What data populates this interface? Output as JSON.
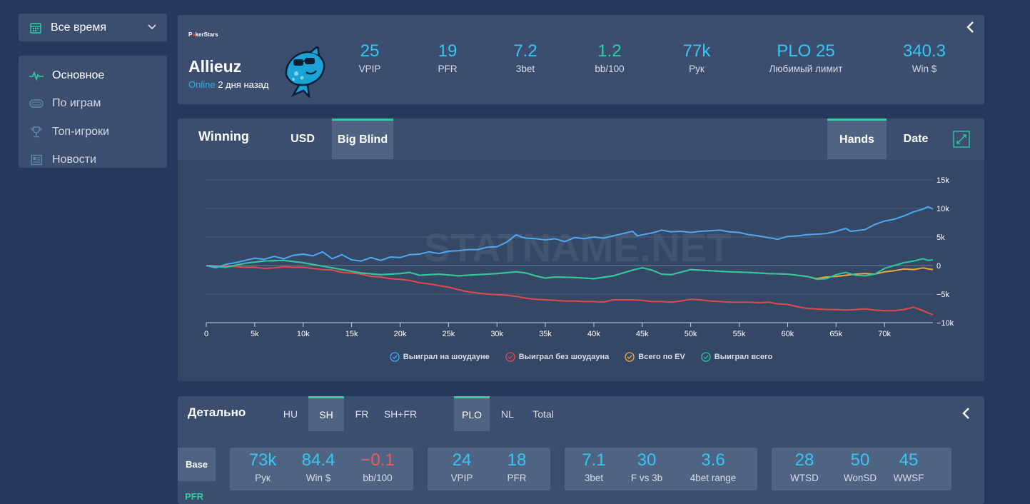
{
  "period_select": {
    "label": "Все время"
  },
  "nav": {
    "items": [
      {
        "label": "Основное"
      },
      {
        "label": "По играм"
      },
      {
        "label": "Топ-игроки"
      },
      {
        "label": "Новости"
      }
    ]
  },
  "player": {
    "room_logo": "PokerStars",
    "name": "Allieuz",
    "online_label": "Online",
    "online_ago": "2 дня назад",
    "stats": [
      {
        "value": "25",
        "label": "VPIP"
      },
      {
        "value": "19",
        "label": "PFR"
      },
      {
        "value": "7.2",
        "label": "3bet"
      },
      {
        "value": "1.2",
        "label": "bb/100"
      },
      {
        "value": "77k",
        "label": "Рук"
      },
      {
        "value": "PLO 25",
        "label": "Любимый лимит"
      },
      {
        "value": "340.3",
        "label": "Win $"
      }
    ]
  },
  "chart_panel": {
    "title": "Winning",
    "unit_tabs": [
      "USD",
      "Big Blind"
    ],
    "active_unit": "Big Blind",
    "axis_tabs": [
      "Hands",
      "Date"
    ],
    "active_axis": "Hands",
    "watermark": "STATNAME.NET"
  },
  "chart_data": {
    "type": "line",
    "title": "Winning",
    "xlabel": "Hands",
    "ylabel": "Big Blind",
    "xlim": [
      0,
      75000
    ],
    "ylim": [
      -10000,
      15000
    ],
    "x_ticks": [
      0,
      5000,
      10000,
      15000,
      20000,
      25000,
      30000,
      35000,
      40000,
      45000,
      50000,
      55000,
      60000,
      65000,
      70000
    ],
    "x_tick_labels": [
      "0",
      "5k",
      "10k",
      "15k",
      "20k",
      "25k",
      "30k",
      "35k",
      "40k",
      "45k",
      "50k",
      "55k",
      "60k",
      "65k",
      "70k"
    ],
    "y_ticks": [
      15000,
      10000,
      5000,
      0,
      -5000,
      -10000
    ],
    "y_tick_labels": [
      "15k",
      "10k",
      "5k",
      "0",
      "−5k",
      "−10k"
    ],
    "legend_position": "bottom-center",
    "series": [
      {
        "name": "Выиграл на шоудауне",
        "color": "#4ea7f2",
        "x": [
          0,
          1000,
          2000,
          3000,
          4000,
          5000,
          6000,
          7000,
          8000,
          9000,
          10000,
          11000,
          12000,
          13000,
          14000,
          15000,
          16000,
          17000,
          18000,
          19000,
          20000,
          21000,
          22000,
          23000,
          24000,
          25000,
          26000,
          27000,
          28000,
          29000,
          30000,
          31000,
          32000,
          32500,
          33000,
          34000,
          35000,
          36000,
          37000,
          38000,
          39000,
          40000,
          41000,
          42000,
          43000,
          44000,
          44500,
          45000,
          46000,
          47000,
          48000,
          49000,
          50000,
          51000,
          52000,
          53000,
          54000,
          55000,
          56000,
          57000,
          58000,
          59000,
          60000,
          61000,
          62000,
          63000,
          64000,
          65000,
          66000,
          66500,
          67000,
          68000,
          69000,
          70000,
          71000,
          72000,
          73000,
          74000,
          74500,
          75000
        ],
        "y": [
          0,
          -400,
          200,
          500,
          900,
          1300,
          1100,
          1600,
          1200,
          1800,
          2000,
          1700,
          2400,
          1200,
          1900,
          1000,
          800,
          1400,
          900,
          1500,
          1400,
          1900,
          2000,
          2400,
          2100,
          2500,
          2600,
          2800,
          2800,
          3200,
          3300,
          4100,
          5400,
          5000,
          4800,
          4700,
          4500,
          4700,
          4200,
          4900,
          4700,
          5000,
          4800,
          5200,
          5600,
          6000,
          5200,
          5400,
          5700,
          6200,
          5900,
          6000,
          5800,
          6000,
          6100,
          6200,
          5900,
          5800,
          5400,
          5200,
          4900,
          4600,
          5100,
          5200,
          5400,
          5500,
          5600,
          6000,
          6500,
          6000,
          6100,
          6300,
          7200,
          7800,
          8100,
          8700,
          9400,
          9900,
          10300,
          9900
        ]
      },
      {
        "name": "Выиграл без шоудауна",
        "color": "#e5474b",
        "x": [
          0,
          2000,
          4000,
          5000,
          6000,
          7000,
          8000,
          9000,
          10000,
          11000,
          12000,
          13000,
          14000,
          15000,
          16000,
          17000,
          18000,
          19000,
          20000,
          21000,
          22000,
          23000,
          24000,
          25000,
          26000,
          27000,
          28000,
          29000,
          30000,
          31000,
          32000,
          33000,
          34000,
          35000,
          36000,
          37000,
          38000,
          39000,
          40000,
          41000,
          42000,
          43000,
          44000,
          45000,
          46000,
          47000,
          48000,
          49000,
          50000,
          51000,
          52000,
          53000,
          54000,
          55000,
          56000,
          57000,
          58000,
          59000,
          60000,
          61000,
          62000,
          63000,
          64000,
          65000,
          66000,
          67000,
          68000,
          69000,
          70000,
          71000,
          72000,
          73000,
          74000,
          74500,
          75000
        ],
        "y": [
          0,
          -100,
          -300,
          -300,
          -500,
          -400,
          -200,
          -300,
          -300,
          -500,
          -700,
          -800,
          -1200,
          -1300,
          -1500,
          -1900,
          -2000,
          -2300,
          -2400,
          -2600,
          -3000,
          -3200,
          -3500,
          -3800,
          -4200,
          -4600,
          -4800,
          -5000,
          -5100,
          -5200,
          -5400,
          -5700,
          -5900,
          -6000,
          -6100,
          -6200,
          -6200,
          -6300,
          -6300,
          -6400,
          -6000,
          -6000,
          -6000,
          -6100,
          -6300,
          -6300,
          -6400,
          -6200,
          -5900,
          -6000,
          -6200,
          -6300,
          -6400,
          -6400,
          -6400,
          -6500,
          -6400,
          -6700,
          -6800,
          -7200,
          -7500,
          -7600,
          -7700,
          -7700,
          -7800,
          -7700,
          -7600,
          -7800,
          -7900,
          -7900,
          -7700,
          -7300,
          -7900,
          -8300,
          -8600
        ]
      },
      {
        "name": "Всего по EV",
        "color": "#f3a63a",
        "x": [
          0,
          2000,
          4000,
          6000,
          8000,
          10000,
          12000,
          14000,
          16000,
          18000,
          20000,
          21000,
          22000,
          24000,
          26000,
          28000,
          30000,
          32000,
          33000,
          34000,
          35000,
          36000,
          38000,
          40000,
          42000,
          44000,
          45000,
          46000,
          47000,
          48000,
          50000,
          52000,
          54000,
          56000,
          58000,
          60000,
          62000,
          63000,
          64000,
          65000,
          66000,
          67000,
          68000,
          69000,
          70000,
          71000,
          72000,
          73000,
          74000,
          74500,
          75000
        ],
        "y": [
          0,
          -300,
          400,
          800,
          900,
          500,
          -100,
          -700,
          -1300,
          -1600,
          -1400,
          -1200,
          -1700,
          -1500,
          -1800,
          -1600,
          -1400,
          -1100,
          -1300,
          -1800,
          -2200,
          -2000,
          -2100,
          -2300,
          -1800,
          -800,
          -400,
          -800,
          -1500,
          -1600,
          -700,
          -900,
          -1100,
          -1200,
          -1400,
          -1500,
          -1900,
          -2300,
          -2000,
          -1900,
          -1700,
          -1500,
          -1400,
          -1500,
          -1100,
          -900,
          -600,
          -700,
          -400,
          -600,
          -700
        ]
      },
      {
        "name": "Выиграл всего",
        "color": "#29c7a0",
        "x": [
          0,
          2000,
          4000,
          6000,
          8000,
          10000,
          12000,
          14000,
          16000,
          18000,
          20000,
          21000,
          22000,
          24000,
          26000,
          28000,
          30000,
          32000,
          33000,
          34000,
          35000,
          36000,
          38000,
          40000,
          42000,
          44000,
          45000,
          46000,
          47000,
          48000,
          50000,
          52000,
          54000,
          56000,
          58000,
          60000,
          62000,
          63000,
          64000,
          65000,
          66000,
          67000,
          68000,
          69000,
          70000,
          71000,
          72000,
          73000,
          74000,
          74500,
          75000
        ],
        "y": [
          0,
          -300,
          400,
          800,
          900,
          500,
          -100,
          -700,
          -1300,
          -1600,
          -1400,
          -1200,
          -1700,
          -1500,
          -1800,
          -1600,
          -1400,
          -1100,
          -1300,
          -1800,
          -2200,
          -2000,
          -2100,
          -2300,
          -1800,
          -800,
          -400,
          -800,
          -1500,
          -1600,
          -700,
          -900,
          -1100,
          -1200,
          -1400,
          -1500,
          -1900,
          -2400,
          -2300,
          -1600,
          -1200,
          -1700,
          -1800,
          -1500,
          -500,
          0,
          500,
          800,
          1200,
          900,
          1000
        ]
      }
    ]
  },
  "details": {
    "title": "Детально",
    "format_tabs": [
      "HU",
      "SH",
      "FR",
      "SH+FR"
    ],
    "active_format": "SH",
    "game_tabs": [
      "PLO",
      "NL",
      "Total"
    ],
    "active_game": "PLO",
    "side_tab": "Base",
    "side_label": "PFR",
    "groups": [
      [
        {
          "value": "73k",
          "label": "Рук"
        },
        {
          "value": "84.4",
          "label": "Win $"
        },
        {
          "value": "−0.1",
          "label": "bb/100"
        }
      ],
      [
        {
          "value": "24",
          "label": "VPIP"
        },
        {
          "value": "18",
          "label": "PFR"
        }
      ],
      [
        {
          "value": "7.1",
          "label": "3bet"
        },
        {
          "value": "30",
          "label": "F vs 3b"
        },
        {
          "value": "3.6",
          "label": "4bet range"
        }
      ],
      [
        {
          "value": "28",
          "label": "WTSD"
        },
        {
          "value": "50",
          "label": "WonSD"
        },
        {
          "value": "45",
          "label": "WWSF"
        }
      ]
    ]
  }
}
